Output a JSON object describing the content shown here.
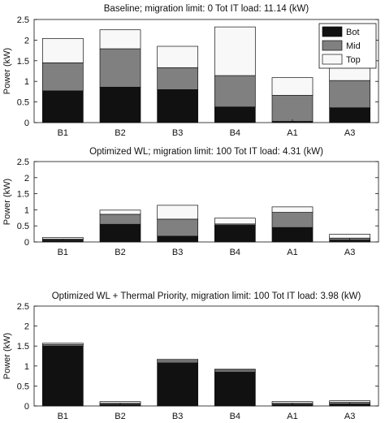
{
  "chart_data": [
    {
      "type": "bar",
      "stacked": true,
      "title": "Baseline; migration limit: 0    Tot IT load: 11.14 (kW)",
      "ylabel": "Power (kW)",
      "xlabel": "",
      "ylim": [
        0,
        2.5
      ],
      "yticks": [
        "0",
        "0.5",
        "1",
        "1.5",
        "2",
        "2.5"
      ],
      "categories": [
        "B1",
        "B2",
        "B3",
        "B4",
        "A1",
        "A3"
      ],
      "legend_position": "top-right",
      "series": [
        {
          "name": "Bot",
          "color": "#111111",
          "values": [
            0.77,
            0.86,
            0.8,
            0.38,
            0.03,
            0.36
          ]
        },
        {
          "name": "Mid",
          "color": "#808080",
          "values": [
            0.68,
            0.93,
            0.53,
            0.76,
            0.63,
            0.66
          ]
        },
        {
          "name": "Top",
          "color": "#f8f8f8",
          "values": [
            0.59,
            0.46,
            0.52,
            1.18,
            0.43,
            0.6
          ]
        }
      ]
    },
    {
      "type": "bar",
      "stacked": true,
      "title": "Optimized WL; migration limit: 100   Tot IT load: 4.31 (kW)",
      "ylabel": "Power (kW)",
      "xlabel": "",
      "ylim": [
        0,
        2.5
      ],
      "yticks": [
        "0",
        "0.5",
        "1",
        "1.5",
        "2",
        "2.5"
      ],
      "categories": [
        "B1",
        "B2",
        "B3",
        "B4",
        "A1",
        "A3"
      ],
      "series": [
        {
          "name": "Bot",
          "color": "#111111",
          "values": [
            0.06,
            0.55,
            0.18,
            0.52,
            0.45,
            0.06
          ]
        },
        {
          "name": "Mid",
          "color": "#808080",
          "values": [
            0.03,
            0.31,
            0.53,
            0.04,
            0.47,
            0.06
          ]
        },
        {
          "name": "Top",
          "color": "#f8f8f8",
          "values": [
            0.05,
            0.13,
            0.43,
            0.18,
            0.17,
            0.12
          ]
        }
      ]
    },
    {
      "type": "bar",
      "stacked": true,
      "title": "Optimized WL + Thermal Priority, migration limit: 100   Tot IT load: 3.98 (kW)",
      "ylabel": "Power (kW)",
      "xlabel": "",
      "ylim": [
        0,
        2.5
      ],
      "yticks": [
        "0",
        "0.5",
        "1",
        "1.5",
        "2",
        "2.5"
      ],
      "categories": [
        "B1",
        "B2",
        "B3",
        "B4",
        "A1",
        "A3"
      ],
      "series": [
        {
          "name": "Bot",
          "color": "#111111",
          "values": [
            1.5,
            0.04,
            1.08,
            0.85,
            0.04,
            0.05
          ]
        },
        {
          "name": "Mid",
          "color": "#808080",
          "values": [
            0.04,
            0.03,
            0.06,
            0.05,
            0.03,
            0.04
          ]
        },
        {
          "name": "Top",
          "color": "#f8f8f8",
          "values": [
            0.03,
            0.04,
            0.03,
            0.02,
            0.04,
            0.04
          ]
        }
      ]
    }
  ]
}
